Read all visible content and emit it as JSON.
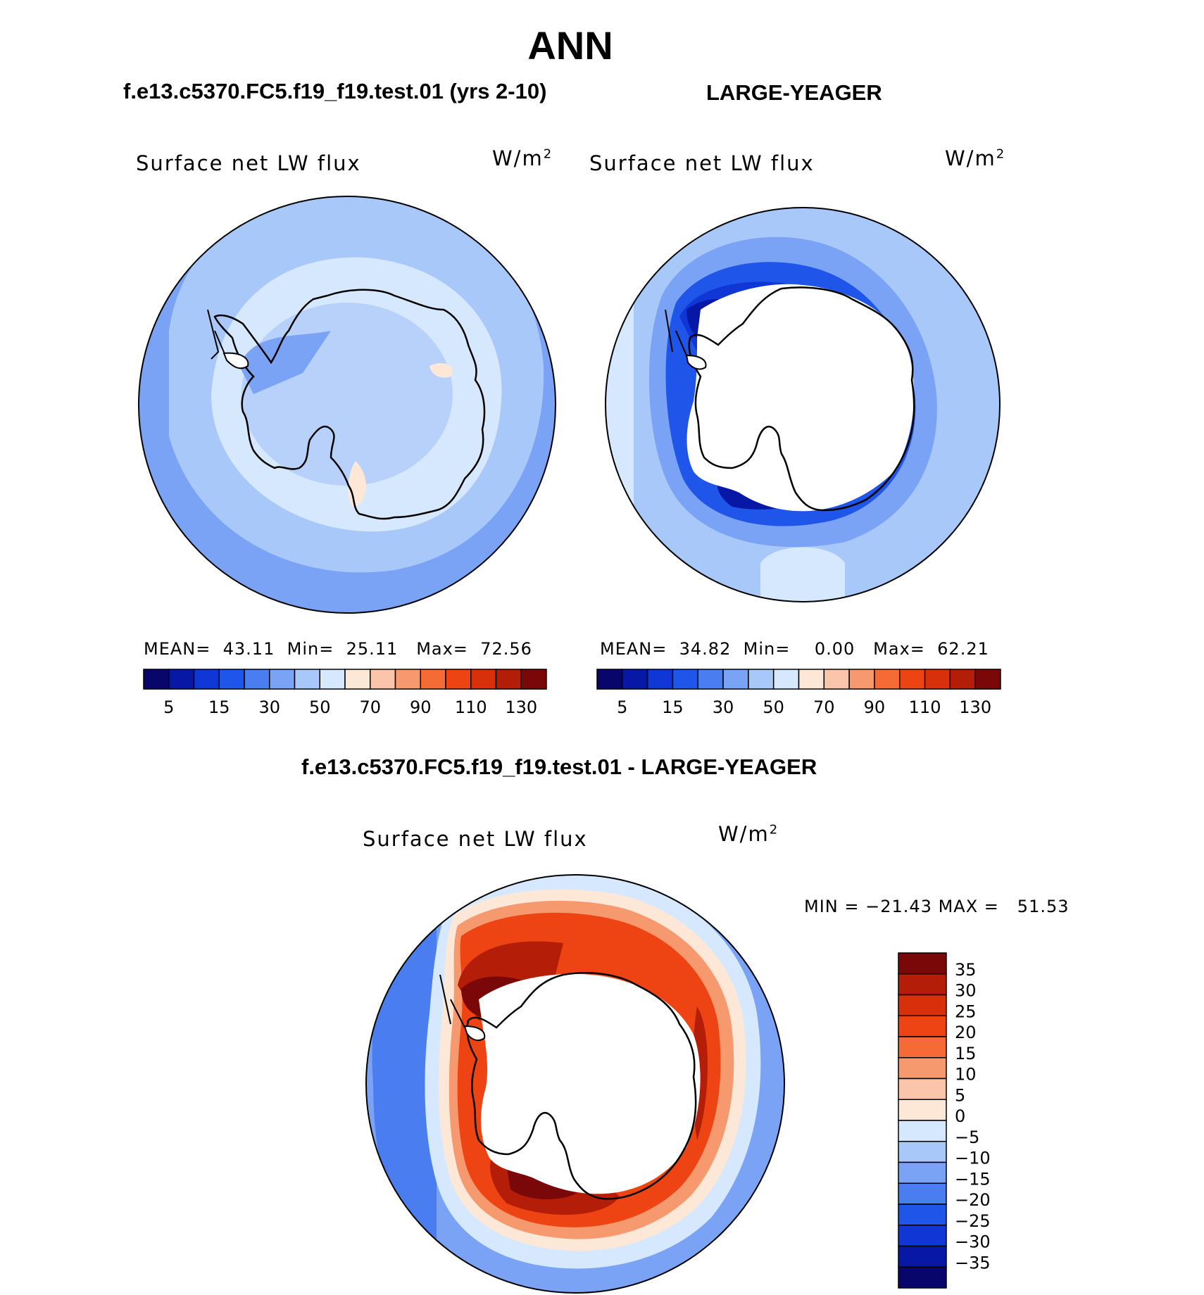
{
  "page": {
    "title": "ANN",
    "subtitle_left": "f.e13.c5370.FC5.f19_f19.test.01 (yrs 2-10)",
    "subtitle_right": "LARGE-YEAGER",
    "diff_title": "f.e13.c5370.FC5.f19_f19.test.01 - LARGE-YEAGER"
  },
  "panels": [
    {
      "label": "Surface net LW flux",
      "units_base": "W/m",
      "units_exp": "2",
      "stats": {
        "mean_label": "MEAN=",
        "mean": "43.11",
        "min_label": "Min=",
        "min": "25.11",
        "max_label": "Max=",
        "max": "72.56"
      }
    },
    {
      "label": "Surface net LW flux",
      "units_base": "W/m",
      "units_exp": "2",
      "stats": {
        "mean_label": "MEAN=",
        "mean": "34.82",
        "min_label": "Min=",
        "min": "0.00",
        "max_label": "Max=",
        "max": "62.21"
      }
    },
    {
      "label": "Surface net LW flux",
      "units_base": "W/m",
      "units_exp": "2",
      "stats": {
        "min_label": "MIN =",
        "min": "−21.43",
        "max_label": "MAX =",
        "max": "51.53"
      }
    }
  ],
  "colorbar_abs": {
    "colors": [
      "#08066b",
      "#0718a6",
      "#1036d6",
      "#1f55e8",
      "#4a7ef0",
      "#7aa3f5",
      "#a9c8fa",
      "#d6e8fd",
      "#fde8d8",
      "#fbc5ab",
      "#f7996f",
      "#f46b36",
      "#ee4413",
      "#d8300b",
      "#b41d08",
      "#7a0808"
    ],
    "tick_labels": [
      "5",
      "15",
      "30",
      "50",
      "70",
      "90",
      "110",
      "130"
    ]
  },
  "colorbar_diff": {
    "colors": [
      "#7a0808",
      "#b41d08",
      "#d8300b",
      "#ee4413",
      "#f46b36",
      "#f7996f",
      "#fbc5ab",
      "#fde8d8",
      "#d6e8fd",
      "#a9c8fa",
      "#7aa3f5",
      "#4a7ef0",
      "#1f55e8",
      "#1036d6",
      "#0718a6",
      "#08066b"
    ],
    "tick_labels": [
      "35",
      "30",
      "25",
      "20",
      "15",
      "10",
      "5",
      "0",
      "−5",
      "−10",
      "−15",
      "−20",
      "−25",
      "−30",
      "−35"
    ]
  },
  "map_colors": {
    "ocean_light": "#a9c8fa",
    "ocean_mid": "#7aa3f5",
    "ocean_pale": "#d6e8fd",
    "deep_blue": "#1036d6",
    "dark_blue": "#0718a6",
    "red_dark": "#7a0808",
    "red": "#d8300b",
    "orange": "#ee4413",
    "salmon": "#f7996f",
    "peach": "#fde8d8",
    "land_white": "#ffffff"
  }
}
